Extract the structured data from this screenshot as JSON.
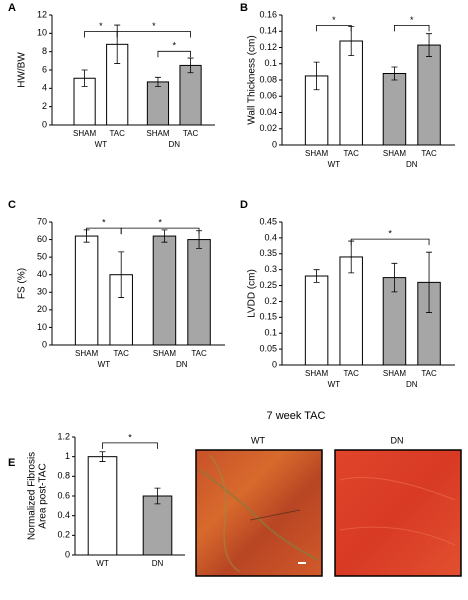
{
  "chart_data": [
    {
      "type": "bar",
      "label": "A",
      "ylabel": [
        "HW/BW"
      ],
      "categories": [
        "SHAM",
        "TAC",
        "SHAM",
        "TAC"
      ],
      "groups": [
        "WT",
        "DN"
      ],
      "values": [
        5.1,
        8.8,
        4.7,
        6.5
      ],
      "errors": [
        0.9,
        2.1,
        0.5,
        0.8
      ],
      "colors": [
        "#ffffff",
        "#ffffff",
        "#a6a6a6",
        "#a6a6a6"
      ],
      "ylim": [
        0,
        12
      ],
      "yticks": [
        0,
        2,
        4,
        6,
        8,
        10,
        12
      ],
      "annotations": [
        "*",
        "*",
        "*"
      ]
    },
    {
      "type": "bar",
      "label": "B",
      "ylabel": [
        "Wall Thickness (cm)"
      ],
      "categories": [
        "SHAM",
        "TAC",
        "SHAM",
        "TAC"
      ],
      "groups": [
        "WT",
        "DN"
      ],
      "values": [
        0.085,
        0.128,
        0.088,
        0.123
      ],
      "errors": [
        0.017,
        0.018,
        0.008,
        0.014
      ],
      "colors": [
        "#ffffff",
        "#ffffff",
        "#a6a6a6",
        "#a6a6a6"
      ],
      "ylim": [
        0,
        0.16
      ],
      "yticks": [
        0,
        0.02,
        0.04,
        0.06,
        0.08,
        0.1,
        0.12,
        0.14,
        0.16
      ],
      "annotations": [
        "*",
        "*"
      ]
    },
    {
      "type": "bar",
      "label": "C",
      "ylabel": [
        "FS (%)"
      ],
      "categories": [
        "SHAM",
        "TAC",
        "SHAM",
        "TAC"
      ],
      "groups": [
        "WT",
        "DN"
      ],
      "values": [
        62,
        40,
        62,
        60
      ],
      "errors": [
        3.5,
        13,
        3.5,
        5
      ],
      "colors": [
        "#ffffff",
        "#ffffff",
        "#a6a6a6",
        "#a6a6a6"
      ],
      "ylim": [
        0,
        70
      ],
      "yticks": [
        0,
        10,
        20,
        30,
        40,
        50,
        60,
        70
      ],
      "annotations": [
        "*",
        "*"
      ]
    },
    {
      "type": "bar",
      "label": "D",
      "ylabel": [
        "LVDD (cm)"
      ],
      "categories": [
        "SHAM",
        "TAC",
        "SHAM",
        "TAC"
      ],
      "groups": [
        "WT",
        "DN"
      ],
      "values": [
        0.28,
        0.34,
        0.275,
        0.26
      ],
      "errors": [
        0.02,
        0.05,
        0.045,
        0.095
      ],
      "colors": [
        "#ffffff",
        "#ffffff",
        "#a6a6a6",
        "#a6a6a6"
      ],
      "ylim": [
        0,
        0.45
      ],
      "yticks": [
        0,
        0.05,
        0.1,
        0.15,
        0.2,
        0.25,
        0.3,
        0.35,
        0.4,
        0.45
      ],
      "annotations": [
        "*"
      ]
    },
    {
      "type": "bar",
      "label": "E",
      "ylabel": [
        "Normalized Fibrosis",
        "Area post-TAC"
      ],
      "categories": [
        "WT",
        "DN"
      ],
      "values": [
        1.0,
        0.6
      ],
      "errors": [
        0.05,
        0.08
      ],
      "colors": [
        "#ffffff",
        "#a6a6a6"
      ],
      "ylim": [
        0,
        1.2
      ],
      "yticks": [
        0,
        0.2,
        0.4,
        0.6,
        0.8,
        1,
        1.2
      ],
      "annotations": [
        "*"
      ]
    }
  ],
  "images": {
    "title": "7 week TAC",
    "panels": [
      "WT",
      "DN"
    ]
  }
}
